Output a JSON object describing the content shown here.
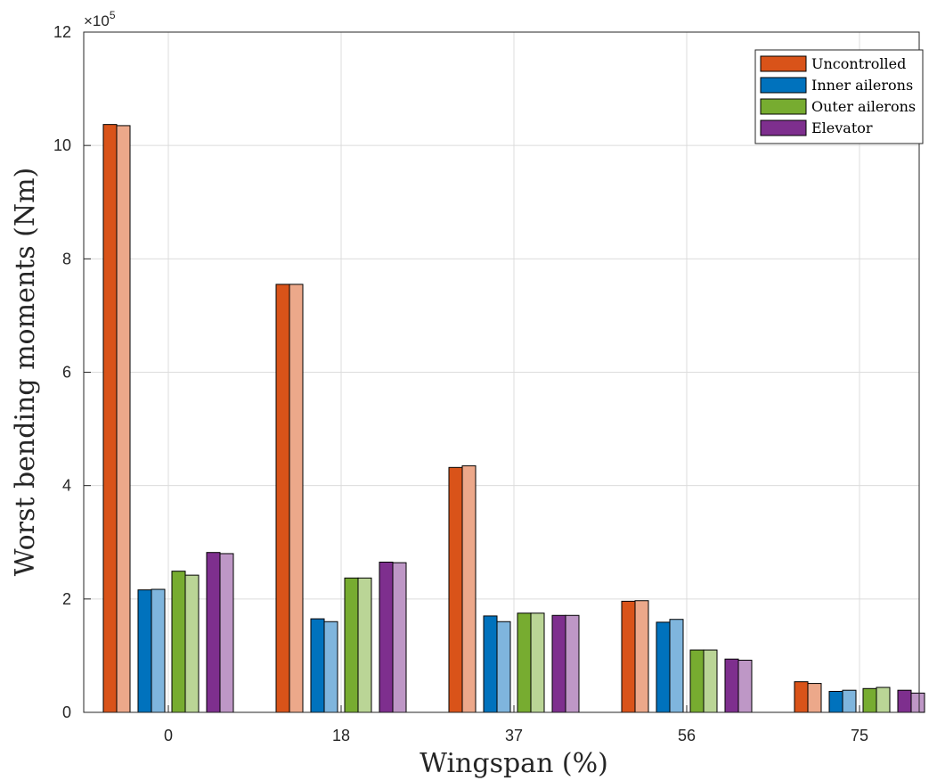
{
  "chart_data": {
    "type": "bar",
    "xlabel": "Wingspan (%)",
    "ylabel": "Worst bending moments (Nm)",
    "y_exponent_base": "×10",
    "y_exponent_power": "5",
    "ylim": [
      0,
      12
    ],
    "yticks": [
      "0",
      "2",
      "4",
      "6",
      "8",
      "10",
      "12"
    ],
    "grid": true,
    "legend_position": "top-right",
    "categories": [
      "0",
      "18",
      "37",
      "56",
      "75"
    ],
    "series": [
      {
        "name": "Uncontrolled",
        "color": "#D95319",
        "light_color": "#ECA88A",
        "values": [
          10.37,
          7.55,
          4.32,
          1.96,
          0.54
        ],
        "values_paired": [
          10.35,
          7.55,
          4.35,
          1.97,
          0.51
        ]
      },
      {
        "name": "Inner ailerons",
        "color": "#0072BD",
        "light_color": "#7FB5DD",
        "values": [
          2.16,
          1.65,
          1.7,
          1.59,
          0.37
        ],
        "values_paired": [
          2.17,
          1.6,
          1.6,
          1.64,
          0.39
        ]
      },
      {
        "name": "Outer ailerons",
        "color": "#77AC30",
        "light_color": "#BAD596",
        "values": [
          2.49,
          2.37,
          1.75,
          1.1,
          0.42
        ],
        "values_paired": [
          2.42,
          2.37,
          1.75,
          1.1,
          0.44
        ]
      },
      {
        "name": "Elevator",
        "color": "#7E2F8E",
        "light_color": "#BE97C6",
        "values": [
          2.82,
          2.65,
          1.71,
          0.94,
          0.39
        ],
        "values_paired": [
          2.8,
          2.64,
          1.71,
          0.92,
          0.34
        ]
      }
    ]
  }
}
